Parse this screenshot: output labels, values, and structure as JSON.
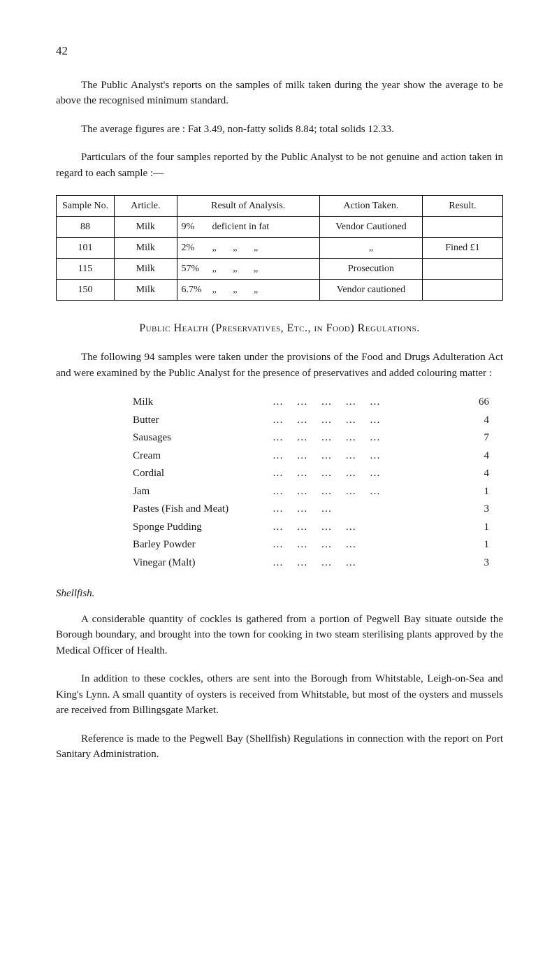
{
  "page_number": "42",
  "para1": "The Public Analyst's reports on the samples of milk taken during the year show the average to be above the recognised minimum standard.",
  "para2": "The average figures are : Fat 3.49, non-fatty solids 8.84; total solids 12.33.",
  "para3": "Particulars of the four samples reported by the Public Analyst to be not genuine and action taken in regard to each sample :―",
  "table": {
    "headers": {
      "sample": "Sample No.",
      "article": "Article.",
      "result": "Result of Analysis.",
      "action": "Action Taken.",
      "resultr": "Result."
    },
    "rows": [
      {
        "sample": "88",
        "article": "Milk",
        "pct": "9%",
        "res": "deficient in fat",
        "action": "Vendor Cautioned",
        "resultr": ""
      },
      {
        "sample": "101",
        "article": "Milk",
        "pct": "2%",
        "res": "  „     „  „",
        "action": "„",
        "resultr": "Fined £1"
      },
      {
        "sample": "115",
        "article": "Milk",
        "pct": "57%",
        "res": "  „     „  „",
        "action": "Prosecution",
        "resultr": ""
      },
      {
        "sample": "150",
        "article": "Milk",
        "pct": "6.7%",
        "res": "  „     „  „",
        "action": "Vendor cautioned",
        "resultr": ""
      }
    ]
  },
  "section_heading": "Public Health (Preservatives, Etc., in Food) Regulations.",
  "para4": "The following 94 samples were taken under the provisions of the Food and Drugs Adulteration Act and were examined by the Public Analyst for the presence of preservatives and added colouring matter :",
  "items": [
    {
      "label": "Milk",
      "value": "66"
    },
    {
      "label": "Butter",
      "value": "4"
    },
    {
      "label": "Sausages",
      "value": "7"
    },
    {
      "label": "Cream",
      "value": "4"
    },
    {
      "label": "Cordial",
      "value": "4"
    },
    {
      "label": "Jam",
      "value": "1"
    },
    {
      "label": "Pastes (Fish and Meat)",
      "value": "3"
    },
    {
      "label": "Sponge Pudding",
      "value": "1"
    },
    {
      "label": "Barley Powder",
      "value": "1"
    },
    {
      "label": "Vinegar (Malt)",
      "value": "3"
    }
  ],
  "subheading": "Shellfish.",
  "para5": "A considerable quantity of cockles is gathered from a portion of Pegwell Bay situate outside the Borough boundary, and brought into the town for cooking in two steam sterilising plants approved by the Medical Officer of Health.",
  "para6": "In addition to these cockles, others are sent into the Borough from Whitstable, Leigh-on-Sea and King's Lynn. A small quantity of oysters is received from Whitstable, but most of the oysters and mussels are received from Billingsgate Market.",
  "para7": "Reference is made to the Pegwell Bay (Shellfish) Regulations in connection with the report on Port Sanitary Administration."
}
